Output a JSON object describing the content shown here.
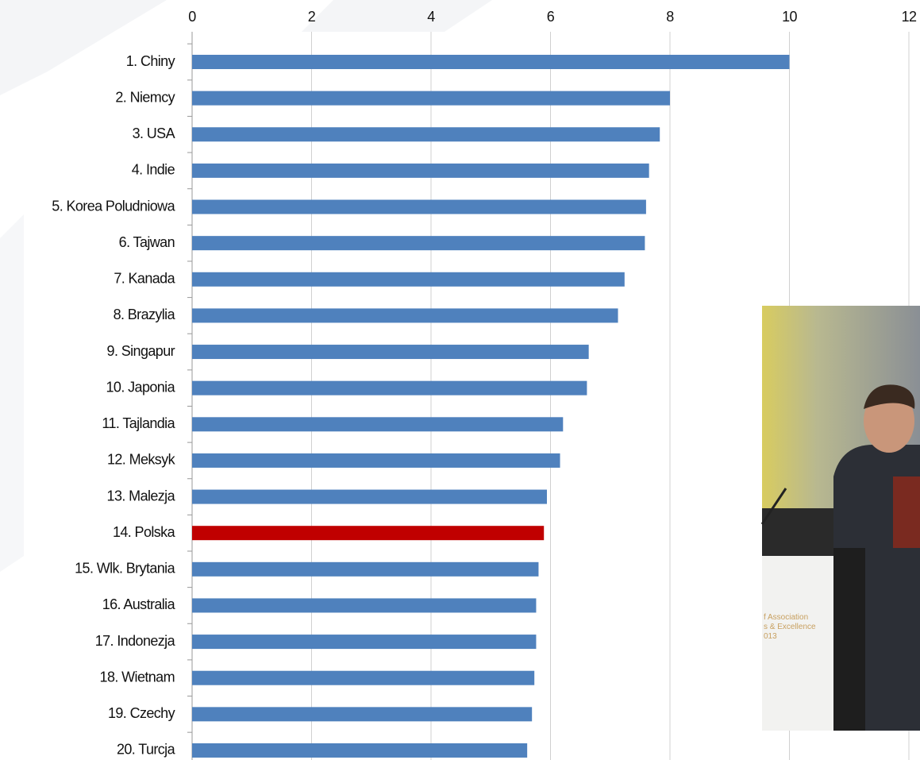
{
  "chart_data": {
    "type": "barh",
    "categories": [
      "1. Chiny",
      "2. Niemcy",
      "3. USA",
      "4. Indie",
      "5. Korea Poludniowa",
      "6. Tajwan",
      "7. Kanada",
      "8. Brazylia",
      "9. Singapur",
      "10. Japonia",
      "11. Tajlandia",
      "12. Meksyk",
      "13. Malezja",
      "14. Polska",
      "15. Wlk. Brytania",
      "16. Australia",
      "17. Indonezja",
      "18. Wietnam",
      "19. Czechy",
      "20. Turcja"
    ],
    "values": [
      10.0,
      8.0,
      7.83,
      7.65,
      7.6,
      7.58,
      7.24,
      7.13,
      6.64,
      6.61,
      6.21,
      6.16,
      5.94,
      5.89,
      5.8,
      5.76,
      5.76,
      5.73,
      5.69,
      5.61
    ],
    "colors": [
      "#4f81bd",
      "#4f81bd",
      "#4f81bd",
      "#4f81bd",
      "#4f81bd",
      "#4f81bd",
      "#4f81bd",
      "#4f81bd",
      "#4f81bd",
      "#4f81bd",
      "#4f81bd",
      "#4f81bd",
      "#4f81bd",
      "#c00000",
      "#4f81bd",
      "#4f81bd",
      "#4f81bd",
      "#4f81bd",
      "#4f81bd",
      "#4f81bd"
    ],
    "xlim": [
      0,
      12
    ],
    "xticks": [
      0,
      2,
      4,
      6,
      8,
      10,
      12
    ],
    "grid": true
  },
  "photo": {
    "text_lines": [
      "f Association",
      "s & Excellence",
      "013"
    ]
  }
}
